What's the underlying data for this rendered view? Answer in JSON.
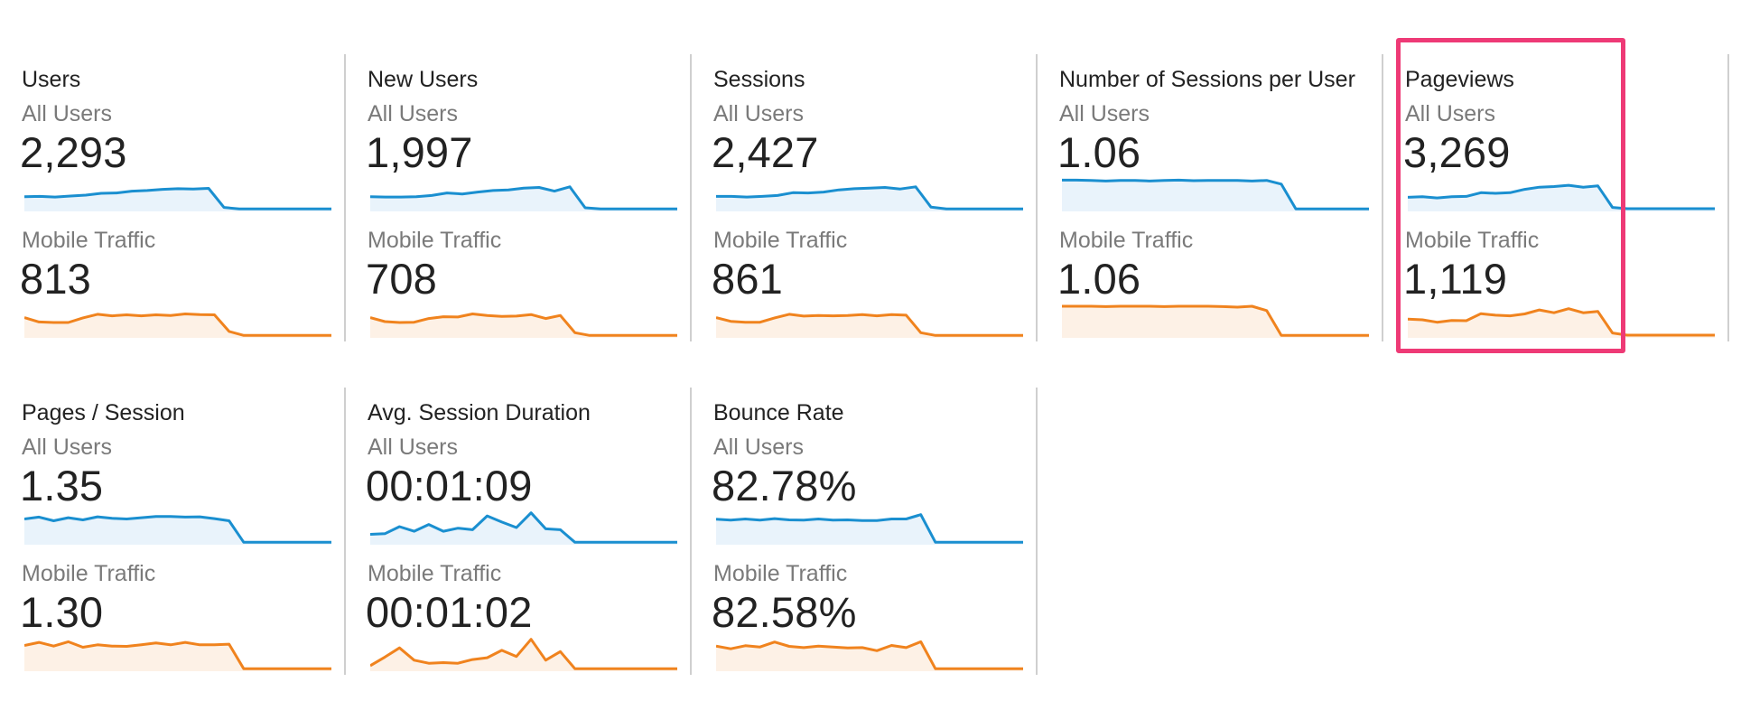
{
  "segments": {
    "a": "All Users",
    "b": "Mobile Traffic"
  },
  "colors": {
    "all_users": "#1a8fd0",
    "mobile": "#f0831e",
    "all_users_fill": "#e9f3fb",
    "mobile_fill": "#fdf1e6",
    "highlight": "#ee3a76"
  },
  "metrics": [
    {
      "title": "Users",
      "all_users": "2,293",
      "mobile": "813",
      "spark_all": [
        0.42,
        0.43,
        0.41,
        0.44,
        0.47,
        0.53,
        0.54,
        0.6,
        0.62,
        0.66,
        0.68,
        0.67,
        0.69,
        0.07,
        0.02,
        0.02,
        0.02,
        0.02,
        0.02,
        0.02,
        0.02
      ],
      "spark_mobile": [
        0.6,
        0.46,
        0.44,
        0.44,
        0.59,
        0.71,
        0.66,
        0.69,
        0.66,
        0.69,
        0.67,
        0.72,
        0.7,
        0.69,
        0.15,
        0.02,
        0.02,
        0.02,
        0.02,
        0.02,
        0.02,
        0.02
      ]
    },
    {
      "title": "New Users",
      "all_users": "1,997",
      "mobile": "708",
      "spark_all": [
        0.42,
        0.41,
        0.41,
        0.42,
        0.46,
        0.54,
        0.51,
        0.57,
        0.62,
        0.64,
        0.7,
        0.72,
        0.6,
        0.74,
        0.06,
        0.02,
        0.02,
        0.02,
        0.02,
        0.02,
        0.02
      ],
      "spark_mobile": [
        0.6,
        0.47,
        0.44,
        0.45,
        0.57,
        0.63,
        0.62,
        0.72,
        0.67,
        0.64,
        0.65,
        0.7,
        0.57,
        0.67,
        0.11,
        0.02,
        0.02,
        0.02,
        0.02,
        0.02,
        0.02,
        0.02
      ]
    },
    {
      "title": "Sessions",
      "all_users": "2,427",
      "mobile": "861",
      "spark_all": [
        0.43,
        0.43,
        0.41,
        0.43,
        0.46,
        0.55,
        0.54,
        0.57,
        0.64,
        0.68,
        0.7,
        0.72,
        0.67,
        0.74,
        0.08,
        0.02,
        0.02,
        0.02,
        0.02,
        0.02,
        0.02
      ],
      "spark_mobile": [
        0.6,
        0.48,
        0.45,
        0.45,
        0.59,
        0.71,
        0.65,
        0.67,
        0.66,
        0.67,
        0.7,
        0.66,
        0.7,
        0.68,
        0.11,
        0.02,
        0.02,
        0.02,
        0.02,
        0.02,
        0.02,
        0.02
      ]
    },
    {
      "title": "Number of Sessions per User",
      "all_users": "1.06",
      "mobile": "1.06",
      "spark_all": [
        0.96,
        0.96,
        0.95,
        0.93,
        0.95,
        0.95,
        0.93,
        0.95,
        0.96,
        0.94,
        0.95,
        0.95,
        0.95,
        0.93,
        0.95,
        0.83,
        0.02,
        0.02,
        0.02,
        0.02,
        0.02,
        0.02
      ],
      "spark_mobile": [
        0.97,
        0.97,
        0.97,
        0.96,
        0.97,
        0.97,
        0.97,
        0.96,
        0.97,
        0.97,
        0.97,
        0.96,
        0.94,
        0.97,
        0.83,
        0.02,
        0.02,
        0.02,
        0.02,
        0.02,
        0.02,
        0.02
      ]
    },
    {
      "title": "Pageviews",
      "all_users": "3,269",
      "mobile": "1,119",
      "spark_all": [
        0.4,
        0.42,
        0.38,
        0.42,
        0.43,
        0.55,
        0.53,
        0.55,
        0.66,
        0.73,
        0.75,
        0.79,
        0.73,
        0.77,
        0.07,
        0.03,
        0.03,
        0.03,
        0.03,
        0.03,
        0.03,
        0.03
      ],
      "spark_mobile": [
        0.55,
        0.53,
        0.45,
        0.51,
        0.5,
        0.73,
        0.68,
        0.66,
        0.72,
        0.85,
        0.76,
        0.89,
        0.76,
        0.8,
        0.1,
        0.03,
        0.03,
        0.03,
        0.03,
        0.03,
        0.03,
        0.03
      ]
    },
    {
      "title": "Pages / Session",
      "all_users": "1.35",
      "mobile": "1.30",
      "spark_all": [
        0.78,
        0.84,
        0.72,
        0.82,
        0.75,
        0.85,
        0.8,
        0.78,
        0.82,
        0.86,
        0.86,
        0.84,
        0.85,
        0.79,
        0.72,
        0.02,
        0.02,
        0.02,
        0.02,
        0.02,
        0.02,
        0.02
      ],
      "spark_mobile": [
        0.78,
        0.88,
        0.76,
        0.9,
        0.72,
        0.8,
        0.76,
        0.75,
        0.8,
        0.86,
        0.8,
        0.88,
        0.8,
        0.8,
        0.82,
        0.02,
        0.02,
        0.02,
        0.02,
        0.02,
        0.02,
        0.02
      ]
    },
    {
      "title": "Avg. Session Duration",
      "all_users": "00:01:09",
      "mobile": "00:01:02",
      "spark_all": [
        0.28,
        0.3,
        0.53,
        0.38,
        0.6,
        0.38,
        0.48,
        0.43,
        0.88,
        0.68,
        0.5,
        0.98,
        0.46,
        0.43,
        0.02,
        0.02,
        0.02,
        0.02,
        0.02,
        0.02,
        0.02,
        0.02
      ],
      "spark_mobile": [
        0.12,
        0.4,
        0.7,
        0.3,
        0.2,
        0.22,
        0.2,
        0.32,
        0.38,
        0.62,
        0.42,
        0.98,
        0.3,
        0.58,
        0.02,
        0.02,
        0.02,
        0.02,
        0.02,
        0.02,
        0.02,
        0.02
      ]
    },
    {
      "title": "Bounce Rate",
      "all_users": "82.78%",
      "mobile": "82.58%",
      "spark_all": [
        0.77,
        0.74,
        0.78,
        0.74,
        0.79,
        0.75,
        0.74,
        0.78,
        0.74,
        0.75,
        0.73,
        0.73,
        0.78,
        0.78,
        0.92,
        0.02,
        0.02,
        0.02,
        0.02,
        0.02,
        0.02,
        0.02
      ],
      "spark_mobile": [
        0.76,
        0.67,
        0.77,
        0.73,
        0.89,
        0.75,
        0.71,
        0.76,
        0.73,
        0.7,
        0.71,
        0.61,
        0.78,
        0.71,
        0.9,
        0.02,
        0.02,
        0.02,
        0.02,
        0.02,
        0.02,
        0.02
      ]
    }
  ]
}
